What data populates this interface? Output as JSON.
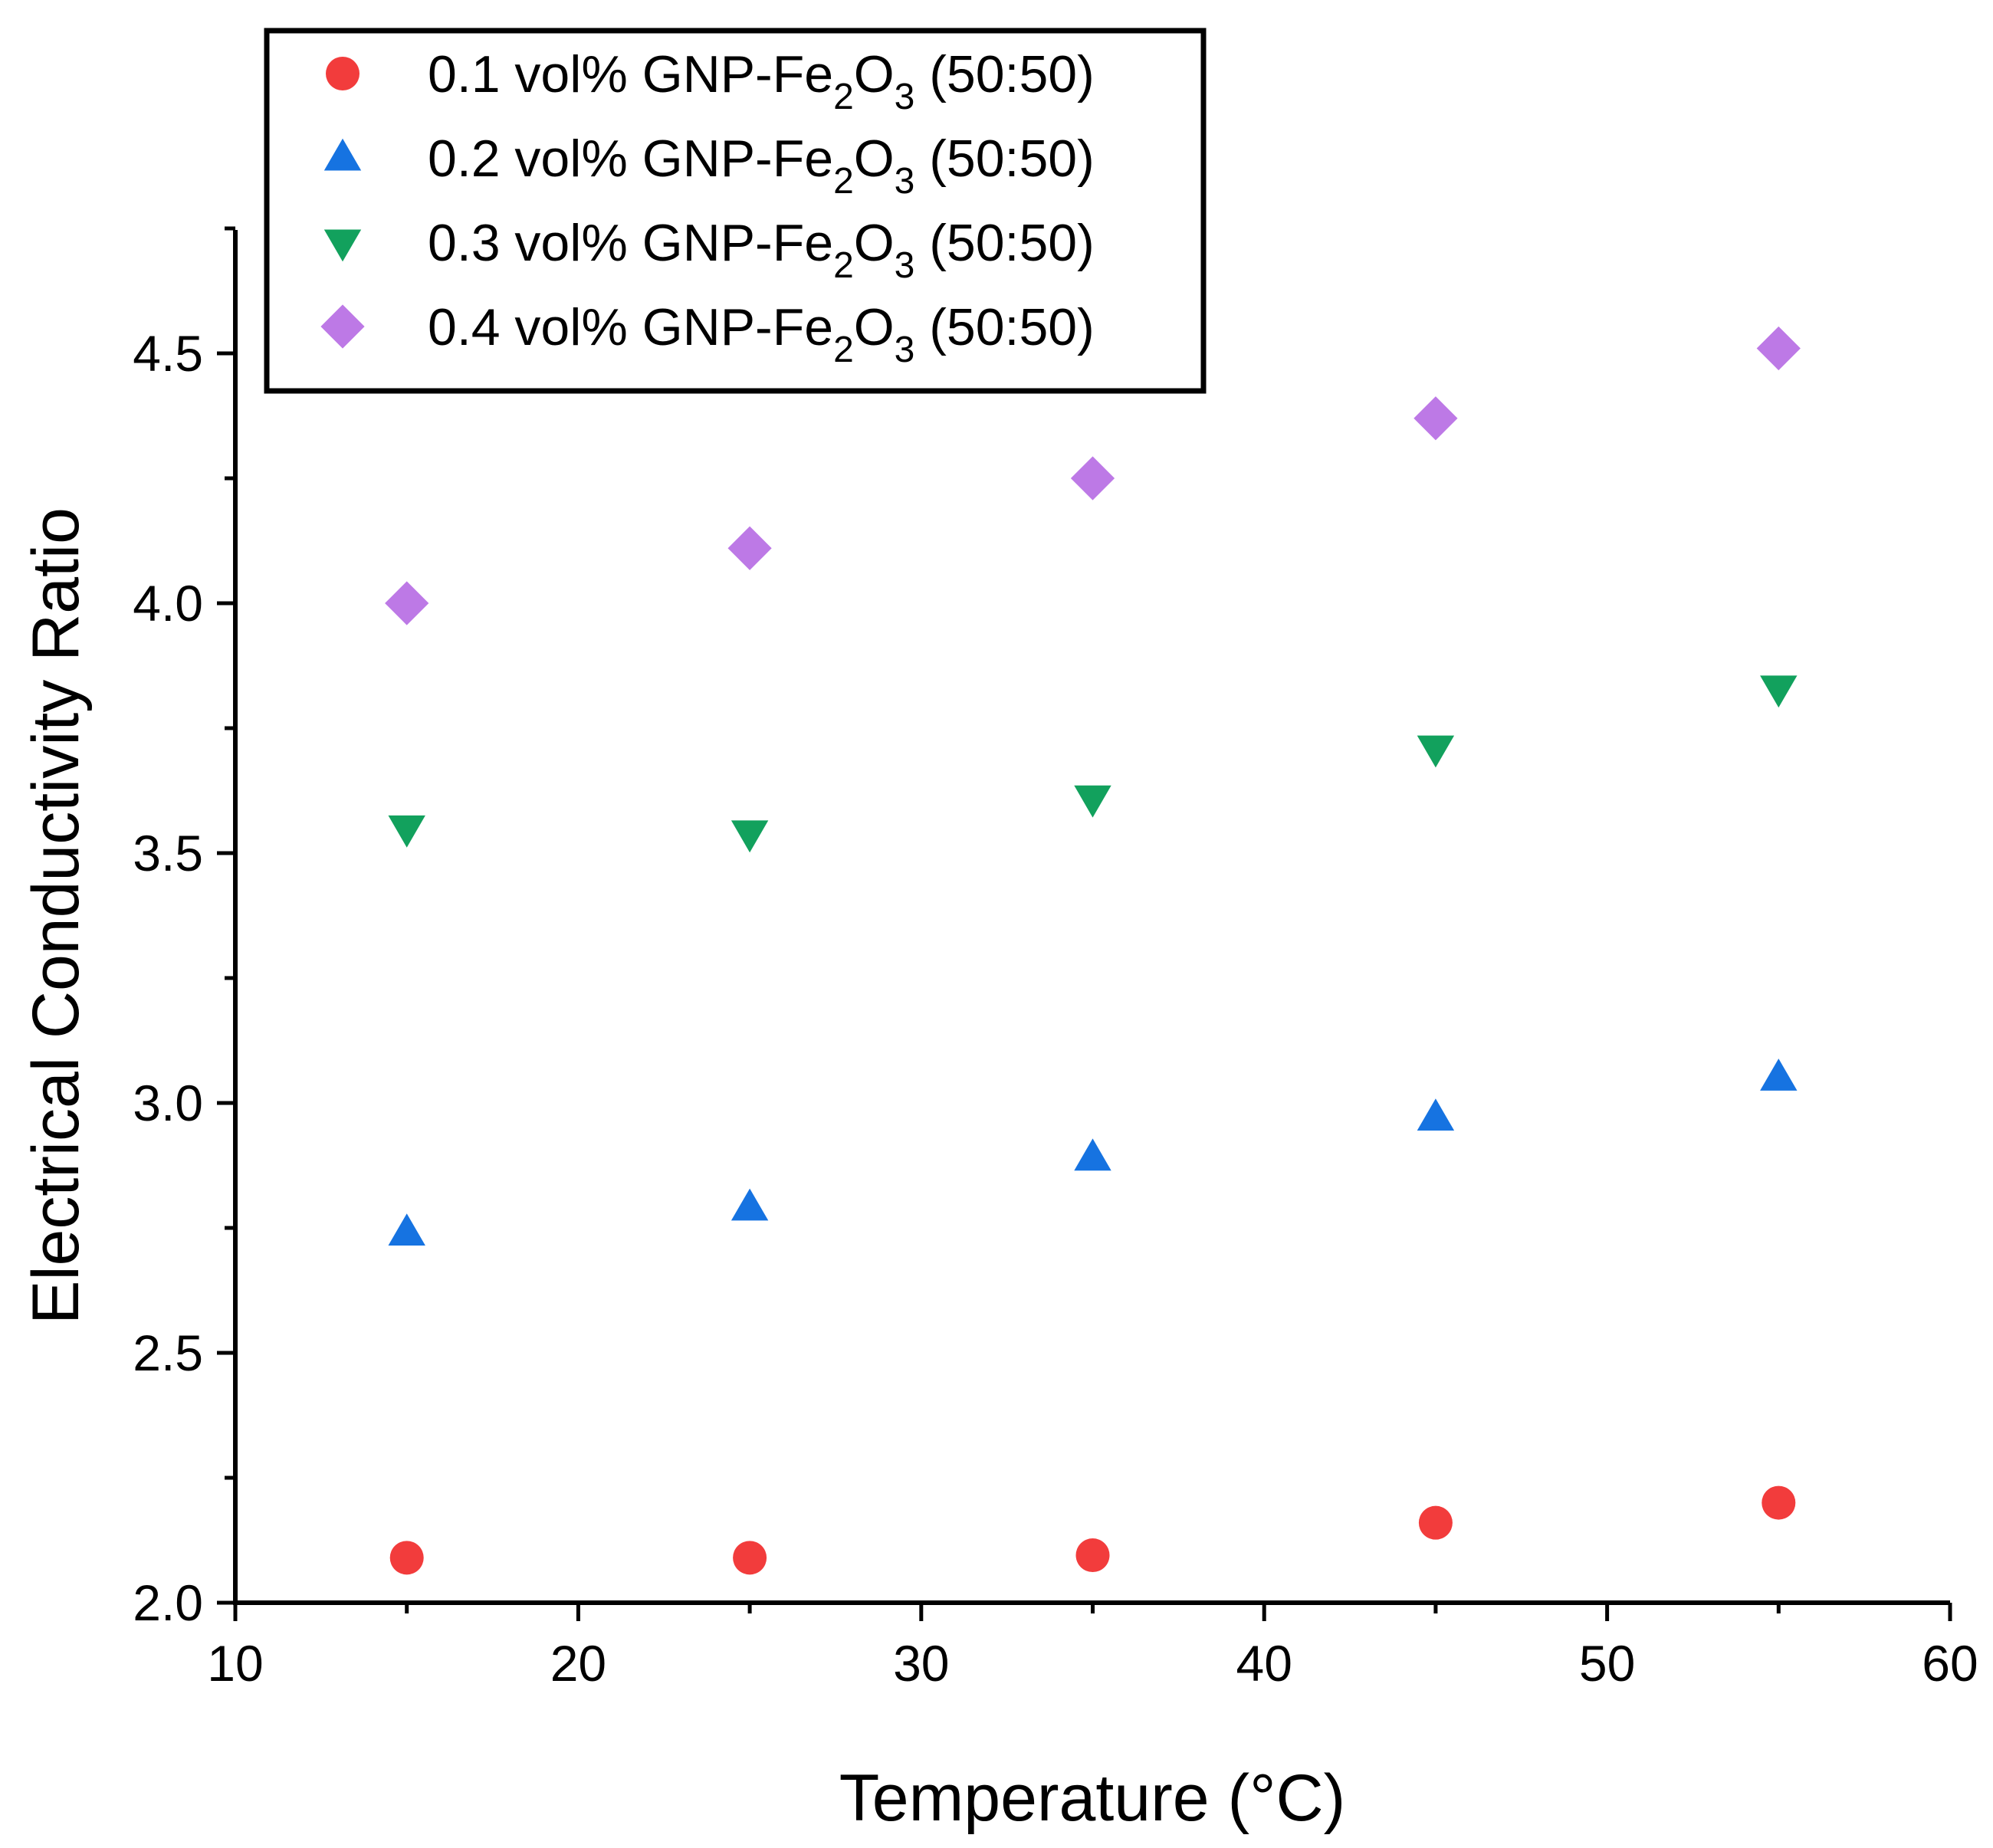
{
  "chart_data": {
    "type": "scatter",
    "title": "",
    "xlabel": "Temperature (°C)",
    "ylabel": "Electrical Conductivity Ratio",
    "xlim": [
      10,
      60
    ],
    "ylim": [
      2.0,
      4.75
    ],
    "x_ticks": [
      10,
      20,
      30,
      40,
      50,
      60
    ],
    "x_tick_labels": [
      "10",
      "20",
      "30",
      "40",
      "50",
      "60"
    ],
    "y_ticks": [
      2.0,
      2.5,
      3.0,
      3.5,
      4.0,
      4.5
    ],
    "y_tick_labels": [
      "2.0",
      "2.5",
      "3.0",
      "3.5",
      "4.0",
      "4.5"
    ],
    "grid": false,
    "legend_position": "top-left",
    "x": [
      15,
      25,
      35,
      45,
      55
    ],
    "series": [
      {
        "name_prefix": "0.1 vol% GNP-Fe",
        "name_sub1": "2",
        "name_mid": "O",
        "name_sub2": "3",
        "name_suffix": " (50:50)",
        "marker": "circle",
        "color": "#f23c3c",
        "values": [
          2.09,
          2.09,
          2.095,
          2.16,
          2.2
        ]
      },
      {
        "name_prefix": "0.2 vol% GNP-Fe",
        "name_sub1": "2",
        "name_mid": "O",
        "name_sub2": "3",
        "name_suffix": " (50:50)",
        "marker": "triangle-up",
        "color": "#1673e1",
        "values": [
          2.74,
          2.79,
          2.89,
          2.97,
          3.05
        ]
      },
      {
        "name_prefix": "0.3 vol% GNP-Fe",
        "name_sub1": "2",
        "name_mid": "O",
        "name_sub2": "3",
        "name_suffix": " (50:50)",
        "marker": "triangle-down",
        "color": "#12a15d",
        "values": [
          3.55,
          3.54,
          3.61,
          3.71,
          3.83
        ]
      },
      {
        "name_prefix": "0.4 vol% GNP-Fe",
        "name_sub1": "2",
        "name_mid": "O",
        "name_sub2": "3",
        "name_suffix": " (50:50)",
        "marker": "diamond",
        "color": "#bd79e6",
        "values": [
          4.0,
          4.11,
          4.25,
          4.37,
          4.51
        ]
      }
    ]
  }
}
